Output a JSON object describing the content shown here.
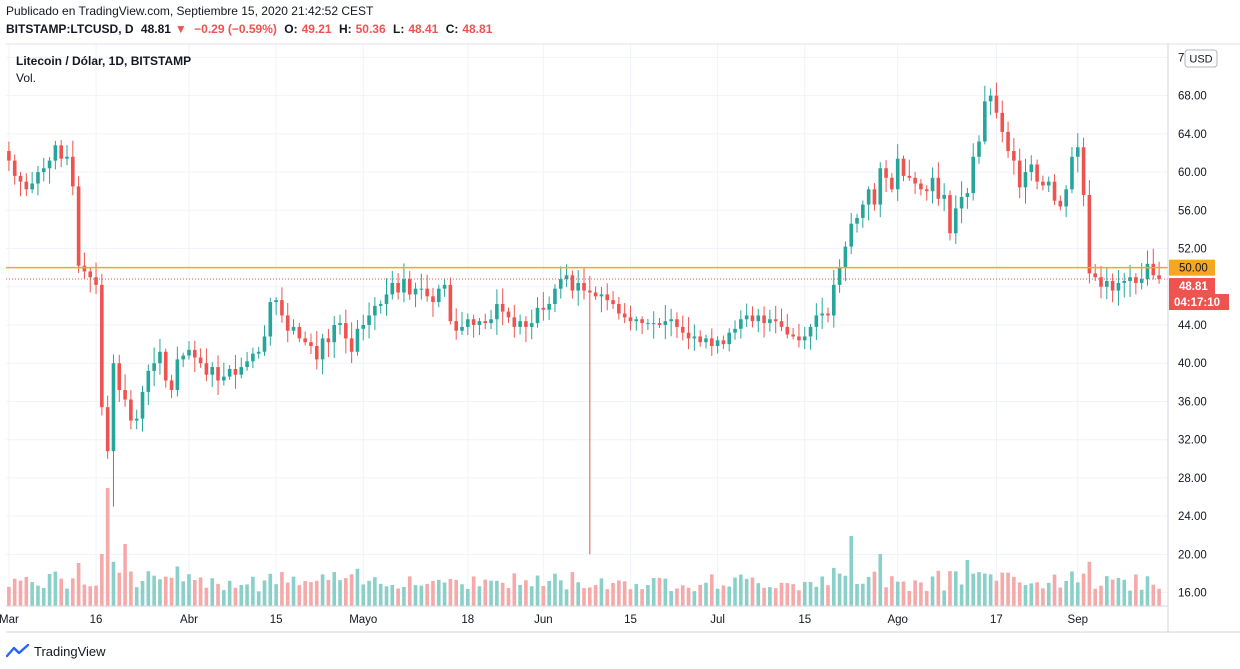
{
  "header": {
    "published": "Publicado en TradingView.com, Septiembre 15, 2020 21:42:52 CEST",
    "symbol": "BITSTAMP:LTCUSD, D",
    "last": "48.81",
    "change": "−0.29 (−0.59%)",
    "o_label": "O:",
    "o": "49.21",
    "h_label": "H:",
    "h": "50.36",
    "l_label": "L:",
    "l": "48.41",
    "c_label": "C:",
    "c": "48.81"
  },
  "legend": {
    "title": "Litecoin / Dólar, 1D, BITSTAMP",
    "vol": "Vol."
  },
  "currency_button": "USD",
  "footer": {
    "brand": "TradingView"
  },
  "colors": {
    "up": "#26a69a",
    "down": "#ef5350",
    "up_vol": "#8ad0c9",
    "down_vol": "#f5a9a8",
    "hline": "#f5a623",
    "grid": "#f0f3fa"
  },
  "chart_data": {
    "type": "candlestick",
    "y_ticks": [
      "72.00",
      "68.00",
      "64.00",
      "60.00",
      "56.00",
      "52.00",
      "48.00",
      "44.00",
      "40.00",
      "36.00",
      "32.00",
      "28.00",
      "24.00",
      "20.00",
      "16.00"
    ],
    "ylim": [
      14.6,
      73.4
    ],
    "x_ticks": [
      "Mar",
      "16",
      "Abr",
      "15",
      "Mayo",
      "18",
      "Jun",
      "15",
      "Jul",
      "15",
      "Ago",
      "17",
      "Sep"
    ],
    "horizontal_line": 50.0,
    "horizontal_line_label": "50.00",
    "last_price_label": "48.81",
    "last_price": 48.81,
    "countdown_label": "04:17:10",
    "close_series": [
      61.2,
      59.6,
      59.0,
      58.2,
      58.8,
      60.0,
      60.4,
      61.2,
      62.8,
      61.4,
      61.6,
      58.5,
      50.2,
      49.6,
      49.0,
      48.2,
      35.4,
      30.8,
      40.0,
      37.2,
      36.2,
      34.0,
      34.2,
      37.0,
      39.2,
      40.0,
      41.2,
      38.2,
      37.2,
      40.4,
      40.8,
      41.4,
      40.6,
      40.0,
      38.8,
      39.6,
      38.2,
      38.6,
      39.4,
      38.8,
      39.6,
      40.2,
      41.0,
      41.2,
      42.8,
      46.4,
      46.6,
      45.0,
      43.4,
      43.8,
      42.6,
      42.2,
      41.8,
      40.4,
      42.6,
      42.2,
      44.0,
      44.2,
      42.6,
      41.2,
      43.6,
      44.0,
      45.0,
      46.0,
      46.2,
      47.2,
      48.4,
      47.4,
      48.8,
      47.2,
      47.8,
      47.8,
      47.0,
      46.4,
      47.8,
      48.2,
      44.4,
      43.4,
      43.8,
      44.6,
      44.0,
      44.4,
      44.2,
      44.6,
      46.2,
      45.4,
      44.8,
      43.8,
      44.4,
      43.8,
      44.2,
      45.8,
      45.6,
      46.2,
      47.8,
      48.8,
      49.2,
      47.6,
      48.4,
      47.6,
      47.4,
      47.0,
      47.2,
      46.6,
      46.2,
      45.2,
      44.8,
      44.4,
      44.6,
      44.2,
      44.2,
      44.2,
      44.0,
      44.4,
      44.6,
      43.8,
      43.2,
      42.6,
      42.8,
      42.2,
      42.6,
      41.8,
      42.4,
      42.0,
      43.2,
      43.6,
      44.6,
      45.0,
      44.4,
      45.0,
      44.2,
      44.6,
      44.4,
      43.8,
      43.0,
      42.8,
      42.4,
      42.8,
      43.8,
      45.0,
      45.2,
      45.0,
      48.2,
      50.0,
      52.2,
      54.6,
      55.2,
      56.6,
      58.2,
      56.6,
      60.4,
      59.4,
      58.2,
      61.4,
      59.6,
      59.4,
      58.8,
      58.2,
      58.0,
      59.4,
      57.2,
      57.6,
      53.6,
      56.2,
      57.4,
      57.8,
      61.6,
      63.2,
      67.4,
      68.0,
      66.2,
      64.2,
      62.2,
      61.2,
      58.4,
      60.0,
      60.8,
      59.0,
      58.6,
      59.0,
      57.0,
      56.4,
      58.2,
      61.6,
      62.6,
      57.6,
      49.4,
      49.0,
      48.0,
      48.6,
      47.6,
      48.4,
      48.6,
      49.0,
      48.4,
      48.8,
      50.4,
      49.2,
      48.8
    ]
  }
}
